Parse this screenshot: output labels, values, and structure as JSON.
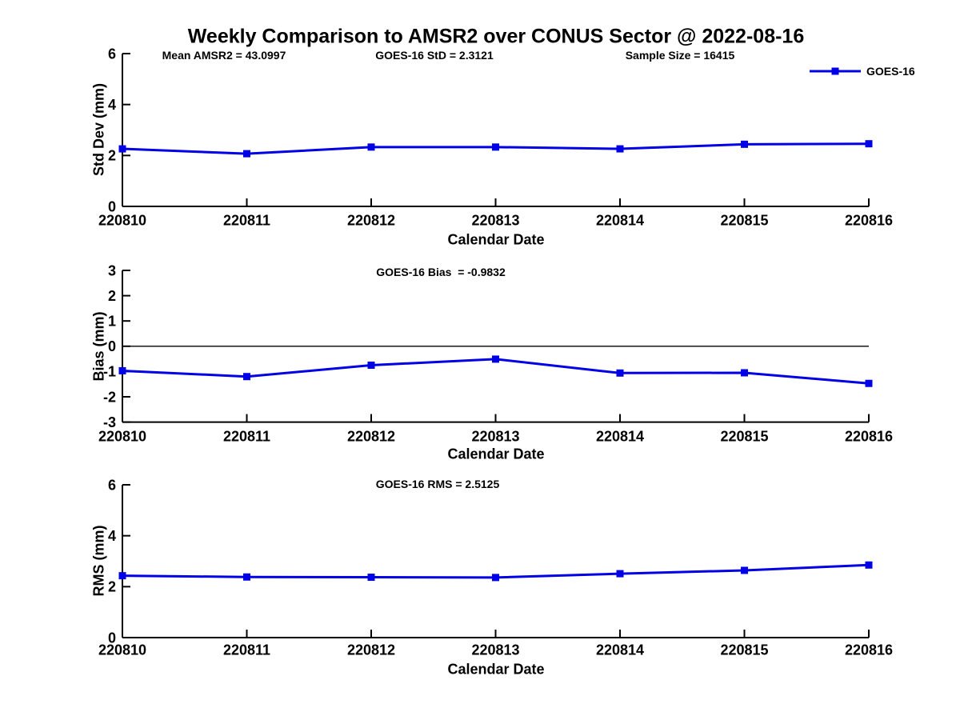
{
  "title": "Weekly Comparison to AMSR2 over CONUS Sector @ 2022-08-16",
  "colors": {
    "line": "#0000e6",
    "axis": "#000000",
    "zero_line": "#000000",
    "background": "#ffffff"
  },
  "legend": {
    "label": "GOES-16",
    "position": "top-right"
  },
  "chart_data": [
    {
      "type": "line",
      "title": "",
      "ylabel": "Std Dev (mm)",
      "xlabel": "Calendar Date",
      "categories": [
        "220810",
        "220811",
        "220812",
        "220813",
        "220814",
        "220815",
        "220816"
      ],
      "series": [
        {
          "name": "GOES-16",
          "marker": "square",
          "values": [
            2.26,
            2.07,
            2.33,
            2.33,
            2.26,
            2.44,
            2.46
          ]
        }
      ],
      "ylim": [
        0,
        6
      ],
      "yticks": [
        0,
        2,
        4,
        6
      ],
      "grid": false,
      "zero_line": false,
      "annotations": [
        "Mean AMSR2 = 43.0997",
        "GOES-16 StD = 2.3121",
        "Sample Size = 16415"
      ]
    },
    {
      "type": "line",
      "title": "",
      "ylabel": "Bias (mm)",
      "xlabel": "Calendar Date",
      "categories": [
        "220810",
        "220811",
        "220812",
        "220813",
        "220814",
        "220815",
        "220816"
      ],
      "series": [
        {
          "name": "GOES-16",
          "marker": "square",
          "values": [
            -0.97,
            -1.2,
            -0.75,
            -0.51,
            -1.06,
            -1.05,
            -1.47
          ]
        }
      ],
      "ylim": [
        -3,
        3
      ],
      "yticks": [
        -3,
        -2,
        -1,
        0,
        1,
        2,
        3
      ],
      "grid": false,
      "zero_line": true,
      "annotations": [
        "GOES-16 Bias  = -0.9832"
      ]
    },
    {
      "type": "line",
      "title": "",
      "ylabel": "RMS (mm)",
      "xlabel": "Calendar Date",
      "categories": [
        "220810",
        "220811",
        "220812",
        "220813",
        "220814",
        "220815",
        "220816"
      ],
      "series": [
        {
          "name": "GOES-16",
          "marker": "square",
          "values": [
            2.43,
            2.38,
            2.37,
            2.36,
            2.51,
            2.64,
            2.85
          ]
        }
      ],
      "ylim": [
        0,
        6
      ],
      "yticks": [
        0,
        2,
        4,
        6
      ],
      "grid": false,
      "zero_line": false,
      "annotations": [
        "GOES-16 RMS = 2.5125"
      ]
    }
  ]
}
